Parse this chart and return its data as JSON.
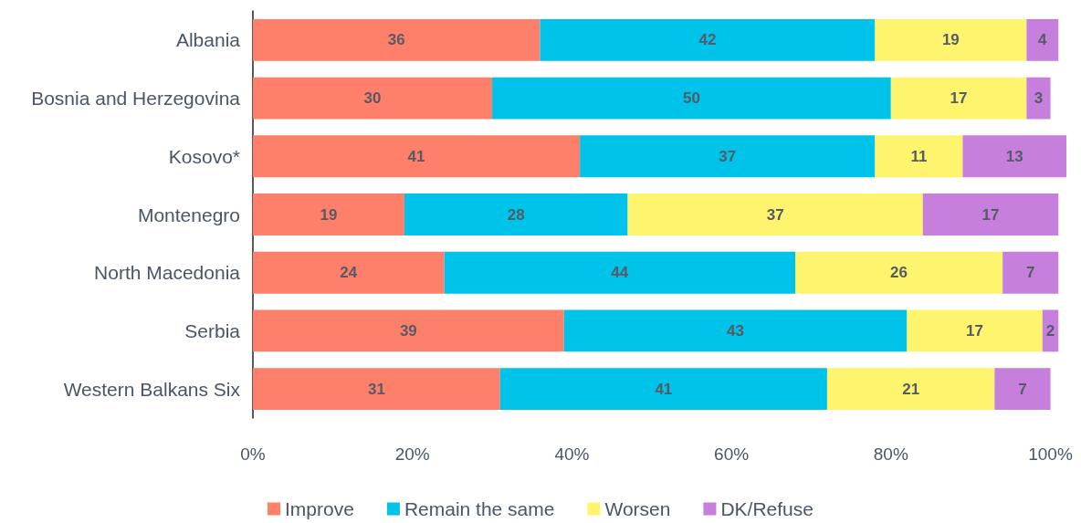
{
  "chart_data": {
    "type": "bar",
    "orientation": "horizontal",
    "stacked": true,
    "data_labels": true,
    "grid": false,
    "legend": "bottom",
    "categories": [
      "Albania",
      "Bosnia and Herzegovina",
      "Kosovo*",
      "Montenegro",
      "North Macedonia",
      "Serbia",
      "Western Balkans Six"
    ],
    "xlim": [
      0,
      102
    ],
    "xticks": [
      {
        "value": 0,
        "label": "0%"
      },
      {
        "value": 20,
        "label": "20%"
      },
      {
        "value": 40,
        "label": "40%"
      },
      {
        "value": 60,
        "label": "60%"
      },
      {
        "value": 80,
        "label": "80%"
      },
      {
        "value": 100,
        "label": "100%"
      }
    ],
    "series": [
      {
        "name": "Improve",
        "color": "#ff806a",
        "values": [
          36,
          30,
          41,
          19,
          24,
          39,
          31
        ]
      },
      {
        "name": "Remain the same",
        "color": "#00c3ea",
        "values": [
          42,
          50,
          37,
          28,
          44,
          43,
          41
        ]
      },
      {
        "name": "Worsen",
        "color": "#fff46e",
        "values": [
          19,
          17,
          11,
          37,
          26,
          17,
          21
        ]
      },
      {
        "name": "DK/Refuse",
        "color": "#c77fde",
        "values": [
          4,
          3,
          13,
          17,
          7,
          2,
          7
        ]
      }
    ]
  }
}
